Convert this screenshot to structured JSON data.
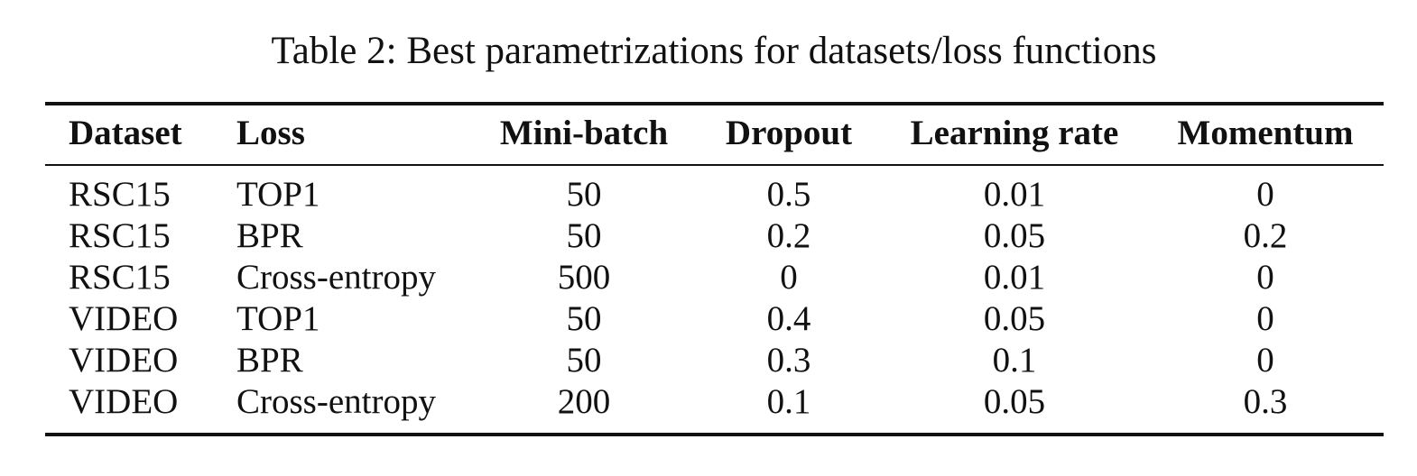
{
  "caption": "Table 2: Best parametrizations for datasets/loss functions",
  "table": {
    "headers": [
      "Dataset",
      "Loss",
      "Mini-batch",
      "Dropout",
      "Learning rate",
      "Momentum"
    ],
    "rows": [
      [
        "RSC15",
        "TOP1",
        "50",
        "0.5",
        "0.01",
        "0"
      ],
      [
        "RSC15",
        "BPR",
        "50",
        "0.2",
        "0.05",
        "0.2"
      ],
      [
        "RSC15",
        "Cross-entropy",
        "500",
        "0",
        "0.01",
        "0"
      ],
      [
        "VIDEO",
        "TOP1",
        "50",
        "0.4",
        "0.05",
        "0"
      ],
      [
        "VIDEO",
        "BPR",
        "50",
        "0.3",
        "0.1",
        "0"
      ],
      [
        "VIDEO",
        "Cross-entropy",
        "200",
        "0.1",
        "0.05",
        "0.3"
      ]
    ]
  }
}
